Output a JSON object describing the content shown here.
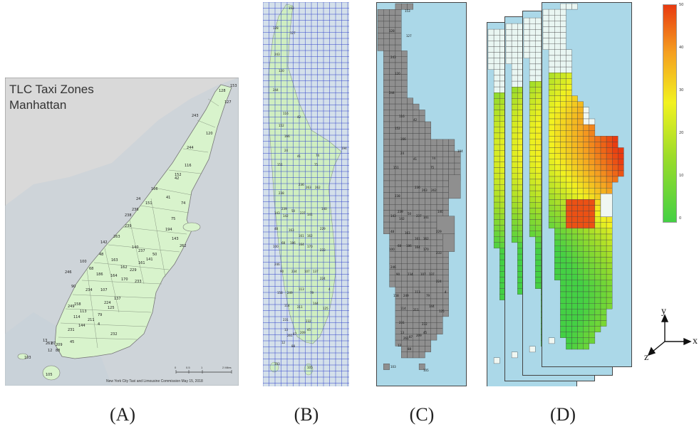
{
  "panel_a": {
    "title_line1": "TLC Taxi Zones",
    "title_line2": "Manhattan",
    "credit": "New York City Taxi and Limousine Commission May 15, 2018",
    "scale": [
      "0",
      "0.5",
      "1",
      "2 Miles"
    ],
    "zones": [
      "128",
      "153",
      "127",
      "243",
      "120",
      "244",
      "116",
      "42",
      "152",
      "166",
      "41",
      "74",
      "24",
      "151",
      "75",
      "238",
      "239",
      "194",
      "143",
      "236",
      "263",
      "142",
      "262",
      "237",
      "50",
      "141",
      "140",
      "48",
      "163",
      "161",
      "162",
      "229",
      "68",
      "186",
      "100",
      "164",
      "170",
      "233",
      "246",
      "90",
      "234",
      "107",
      "137",
      "224",
      "158",
      "249",
      "113",
      "79",
      "114",
      "211",
      "144",
      "4",
      "125",
      "231",
      "232",
      "13",
      "261",
      "87",
      "209",
      "45",
      "88",
      "12",
      "103",
      "105"
    ]
  },
  "zone_labels_grid": [
    "153",
    "128",
    "127",
    "243",
    "120",
    "244",
    "116",
    "42",
    "152",
    "166",
    "41",
    "74",
    "194",
    "24",
    "151",
    "75",
    "238",
    "236",
    "263",
    "239",
    "143",
    "142",
    "262",
    "237",
    "141",
    "140",
    "50",
    "48",
    "163",
    "161",
    "162",
    "229",
    "68",
    "186",
    "100",
    "164",
    "170",
    "233",
    "246",
    "90",
    "234",
    "107",
    "137",
    "224",
    "158",
    "249",
    "113",
    "79",
    "114",
    "211",
    "144",
    "4",
    "125",
    "231",
    "232",
    "13",
    "261",
    "87",
    "209",
    "45",
    "88",
    "12",
    "103",
    "105"
  ],
  "colorbar_ticks": [
    "50",
    "40",
    "30",
    "20",
    "10",
    "0"
  ],
  "axes": {
    "y": "y",
    "x": "x",
    "z": "z"
  },
  "captions": {
    "a": "(A)",
    "b": "(B)",
    "c": "(C)",
    "d": "(D)"
  },
  "colors": {
    "land": "#d8f3cc",
    "water": "#cfd8e0",
    "grid_line": "#3344cc",
    "gray_zone": "#8f8f8f",
    "sea": "#abd8e8"
  }
}
